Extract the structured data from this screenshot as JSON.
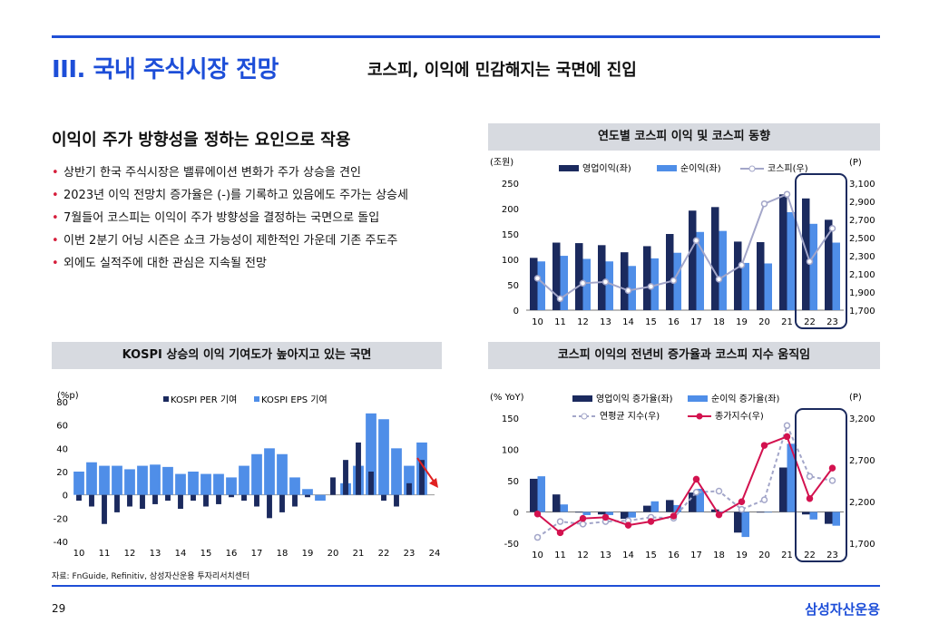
{
  "header": {
    "section_title": "III. 국내 주식시장 전망",
    "subtitle": "코스피, 이익에 민감해지는 국면에 진입"
  },
  "left": {
    "heading": "이익이 주가 방향성을 정하는 요인으로 작용",
    "bullets": [
      "상반기 한국 주식시장은 밸류에이션 변화가 주가 상승을 견인",
      "2023년 이익 전망치 증가율은 (-)를 기록하고 있음에도 주가는 상승세",
      "7월들어 코스피는 이익이 주가 방향성을 결정하는 국면으로 돌입",
      "이번 2분기 어닝 시즌은 쇼크 가능성이 제한적인 가운데 기존 주도주",
      "외에도 실적주에 대한 관심은 지속될 전망"
    ]
  },
  "footer": {
    "source": "자료: FnGuide, Refinitiv, 삼성자산운용 투자리서치센터",
    "page": "29",
    "brand": "삼성자산운용"
  },
  "colors": {
    "navy": "#1b2a5e",
    "blue": "#4f8ee8",
    "gray": "#a3a6c9",
    "red": "#d3124f",
    "accent": "#1d4ed8"
  },
  "chart_data": [
    {
      "type": "bar+line",
      "title": "연도별 코스피 이익 및 코스피 동향",
      "ylabel_left": "(조원)",
      "ylabel_right": "(P)",
      "categories": [
        "10",
        "11",
        "12",
        "13",
        "14",
        "15",
        "16",
        "17",
        "18",
        "19",
        "20",
        "21",
        "22",
        "23"
      ],
      "ylim_left": [
        0,
        250
      ],
      "yticks_left": [
        "0",
        "50",
        "100",
        "150",
        "200",
        "250"
      ],
      "ylim_right": [
        1700,
        3100
      ],
      "yticks_right": [
        "1,700",
        "1,900",
        "2,100",
        "2,300",
        "2,500",
        "2,700",
        "2,900",
        "3,100"
      ],
      "series": [
        {
          "name": "영업이익(좌)",
          "type": "bar",
          "axis": "left",
          "values": [
            103,
            133,
            132,
            128,
            114,
            126,
            150,
            196,
            203,
            135,
            134,
            228,
            220,
            178
          ]
        },
        {
          "name": "순이익(좌)",
          "type": "bar",
          "axis": "left",
          "values": [
            96,
            107,
            101,
            96,
            87,
            102,
            113,
            154,
            156,
            93,
            92,
            193,
            170,
            133
          ]
        },
        {
          "name": "코스피(우)",
          "type": "line",
          "axis": "right",
          "values": [
            2051,
            1826,
            1997,
            2011,
            1916,
            1961,
            2026,
            2467,
            2041,
            2197,
            2873,
            2978,
            2236,
            2601
          ]
        }
      ],
      "highlight": [
        "22",
        "23"
      ]
    },
    {
      "type": "bar",
      "title": "KOSPI 상승의 이익 기여도가 높아지고 있는 국면",
      "ylabel": "(%p)",
      "x_ticks": [
        "10",
        "11",
        "12",
        "13",
        "14",
        "15",
        "16",
        "17",
        "18",
        "19",
        "20",
        "21",
        "22",
        "23",
        "24"
      ],
      "ylim": [
        -40,
        80
      ],
      "yticks": [
        "-40",
        "-20",
        "0",
        "20",
        "40",
        "60",
        "80"
      ],
      "x": [
        10.0,
        10.5,
        11.0,
        11.5,
        12.0,
        12.5,
        13.0,
        13.5,
        14.0,
        14.5,
        15.0,
        15.5,
        16.0,
        16.5,
        17.0,
        17.5,
        18.0,
        18.5,
        19.0,
        19.5,
        20.0,
        20.5,
        21.0,
        21.5,
        22.0,
        22.5,
        23.0,
        23.5
      ],
      "series": [
        {
          "name": "KOSPI PER 기여",
          "values": [
            -5,
            -10,
            -25,
            -15,
            -10,
            -12,
            -8,
            -5,
            -12,
            -5,
            -10,
            -8,
            -2,
            -5,
            -10,
            -20,
            -15,
            -10,
            -2,
            0,
            15,
            30,
            45,
            20,
            -5,
            -10,
            10,
            30
          ]
        },
        {
          "name": "KOSPI EPS 기여",
          "values": [
            20,
            28,
            25,
            25,
            22,
            25,
            26,
            24,
            18,
            20,
            18,
            18,
            15,
            25,
            35,
            40,
            35,
            15,
            5,
            -5,
            0,
            10,
            25,
            70,
            65,
            40,
            25,
            45
          ]
        }
      ],
      "annotation": "arrow-down"
    },
    {
      "type": "bar+line",
      "title": "코스피 이익의 전년비 증가율과 코스피 지수 움직임",
      "ylabel_left": "(% YoY)",
      "ylabel_right": "(P)",
      "categories": [
        "10",
        "11",
        "12",
        "13",
        "14",
        "15",
        "16",
        "17",
        "18",
        "19",
        "20",
        "21",
        "22",
        "23"
      ],
      "ylim_left": [
        -50,
        150
      ],
      "yticks_left": [
        "-50",
        "0",
        "50",
        "100",
        "150"
      ],
      "ylim_right": [
        1700,
        3200
      ],
      "yticks_right": [
        "1,700",
        "2,200",
        "2,700",
        "3,200"
      ],
      "series": [
        {
          "name": "영업이익 증가율(좌)",
          "type": "bar",
          "axis": "left",
          "values": [
            53,
            28,
            -1,
            -4,
            -11,
            10,
            19,
            31,
            4,
            -33,
            -1,
            71,
            -4,
            -19
          ]
        },
        {
          "name": "순이익 증가율(좌)",
          "type": "bar",
          "axis": "left",
          "values": [
            57,
            12,
            -5,
            -5,
            -9,
            17,
            11,
            37,
            1,
            -40,
            -1,
            109,
            -12,
            -22
          ]
        },
        {
          "name": "연평균 지수(우)",
          "type": "line",
          "axis": "right",
          "values": [
            1770,
            1960,
            1930,
            1960,
            1970,
            2011,
            2000,
            2311,
            2325,
            2106,
            2220,
            3111,
            2501,
            2451
          ]
        },
        {
          "name": "종가지수(우)",
          "type": "line",
          "axis": "right",
          "values": [
            2051,
            1826,
            1997,
            2011,
            1916,
            1961,
            2026,
            2467,
            2041,
            2197,
            2873,
            2978,
            2236,
            2601
          ]
        }
      ],
      "highlight": [
        "22",
        "23"
      ]
    }
  ]
}
